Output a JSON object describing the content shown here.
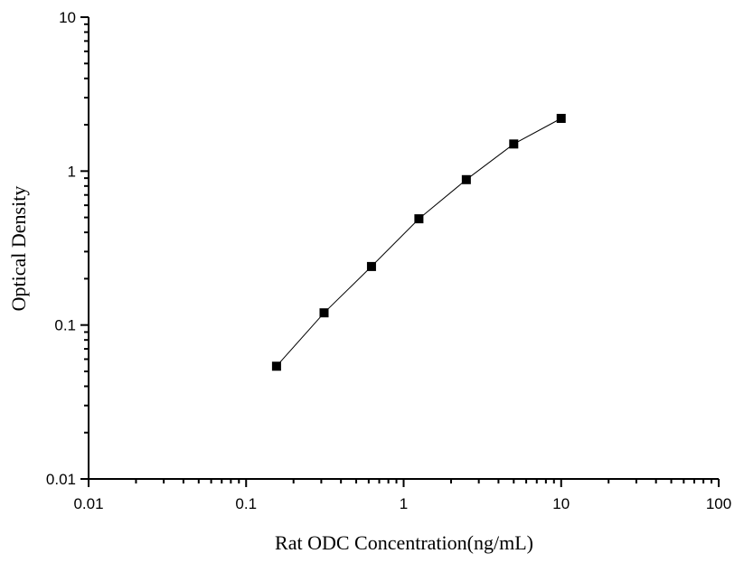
{
  "chart_data": {
    "type": "line",
    "xlabel": "Rat ODC Concentration(ng/mL)",
    "ylabel": "Optical Density",
    "xscale": "log",
    "yscale": "log",
    "xlim": [
      0.01,
      100
    ],
    "ylim": [
      0.01,
      10
    ],
    "xticks": [
      "0.01",
      "0.1",
      "1",
      "10",
      "100"
    ],
    "yticks": [
      "0.01",
      "0.1",
      "1",
      "10"
    ],
    "grid": false,
    "marker": "square",
    "color": "#000000",
    "series": [
      {
        "x": [
          0.156,
          0.3125,
          0.625,
          1.25,
          2.5,
          5,
          10
        ],
        "y": [
          0.054,
          0.12,
          0.24,
          0.49,
          0.88,
          1.5,
          2.2
        ]
      }
    ]
  }
}
